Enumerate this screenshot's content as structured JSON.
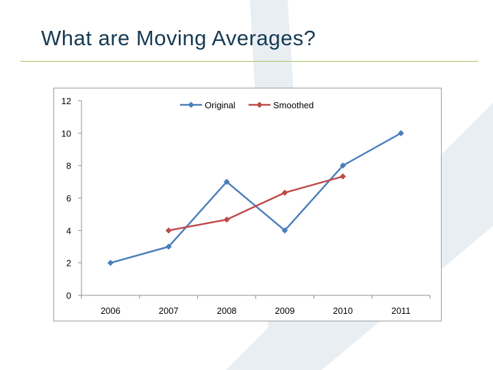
{
  "slide": {
    "title": "What are Moving Averages?"
  },
  "colors": {
    "title_text": "#163a52",
    "rule": "#a9bf5a",
    "watermark": "#e9eef2",
    "original_series": "#4a7ebb",
    "smoothed_series": "#be4b48"
  },
  "chart_data": {
    "type": "line",
    "title": "",
    "xlabel": "",
    "ylabel": "",
    "categories": [
      "2006",
      "2007",
      "2008",
      "2009",
      "2010",
      "2011"
    ],
    "ylim": [
      0,
      12
    ],
    "yticks": [
      0,
      2,
      4,
      6,
      8,
      10,
      12
    ],
    "grid": false,
    "legend_position": "top-center",
    "marker": "diamond",
    "series": [
      {
        "name": "Original",
        "color": "#4a7ebb",
        "values": [
          2,
          3,
          7,
          4,
          8,
          10
        ]
      },
      {
        "name": "Smoothed",
        "color": "#be4b48",
        "values": [
          null,
          4,
          4.67,
          6.33,
          7.33,
          null
        ]
      }
    ]
  }
}
